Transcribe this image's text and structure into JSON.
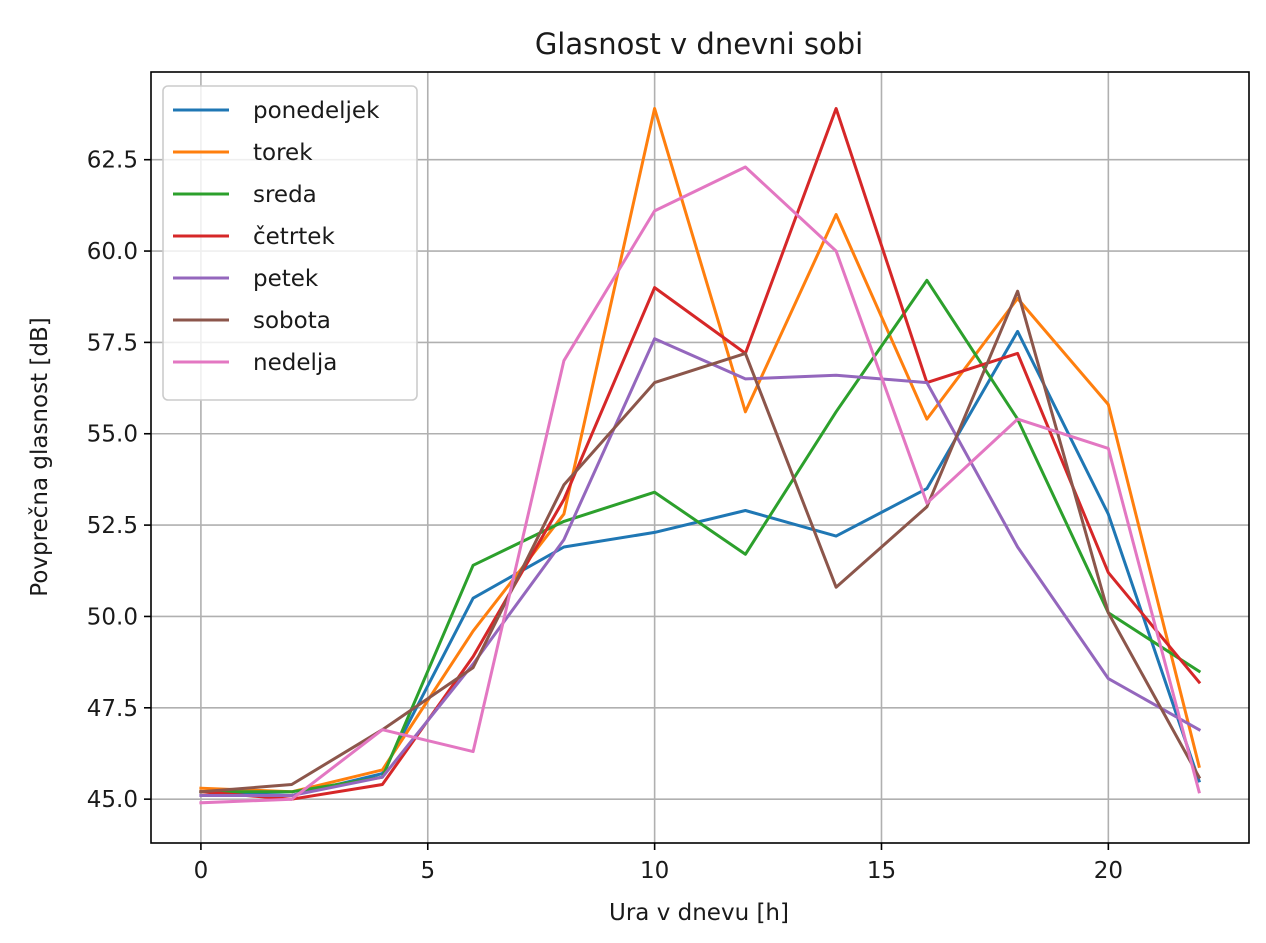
{
  "chart_data": {
    "type": "line",
    "title": "Glasnost v dnevni sobi",
    "xlabel": "Ura v dnevu [h]",
    "ylabel": "Povprečna glasnost [dB]",
    "xlim": [
      -1.1,
      23.1
    ],
    "ylim": [
      43.8,
      64.9
    ],
    "xticks": [
      0,
      5,
      10,
      15,
      20
    ],
    "xtick_labels": [
      "0",
      "5",
      "10",
      "15",
      "20"
    ],
    "yticks": [
      45.0,
      47.5,
      50.0,
      52.5,
      55.0,
      57.5,
      60.0,
      62.5
    ],
    "ytick_labels": [
      "45.0",
      "47.5",
      "50.0",
      "52.5",
      "55.0",
      "57.5",
      "60.0",
      "62.5"
    ],
    "grid": true,
    "legend_position": "top-left",
    "x": [
      0,
      2,
      4,
      6,
      8,
      10,
      12,
      14,
      16,
      18,
      20,
      22
    ],
    "series": [
      {
        "name": "ponedeljek",
        "color": "#1f77b4",
        "values": [
          45.2,
          45.1,
          45.7,
          50.5,
          51.9,
          52.3,
          52.9,
          52.2,
          53.5,
          57.8,
          52.8,
          45.5
        ]
      },
      {
        "name": "torek",
        "color": "#ff7f0e",
        "values": [
          45.3,
          45.2,
          45.8,
          49.6,
          52.8,
          63.9,
          55.6,
          61.0,
          55.4,
          58.7,
          55.8,
          45.9
        ]
      },
      {
        "name": "sreda",
        "color": "#2ca02c",
        "values": [
          45.2,
          45.2,
          45.6,
          51.4,
          52.6,
          53.4,
          51.7,
          55.6,
          59.2,
          55.4,
          50.1,
          48.5
        ]
      },
      {
        "name": "četrtek",
        "color": "#d62728",
        "values": [
          45.2,
          45.0,
          45.4,
          48.9,
          53.2,
          59.0,
          57.2,
          63.9,
          56.4,
          57.2,
          51.2,
          48.2
        ]
      },
      {
        "name": "petek",
        "color": "#9467bd",
        "values": [
          45.1,
          45.1,
          45.6,
          48.7,
          52.1,
          57.6,
          56.5,
          56.6,
          56.4,
          51.9,
          48.3,
          46.9
        ]
      },
      {
        "name": "sobota",
        "color": "#8c564b",
        "values": [
          45.2,
          45.4,
          46.9,
          48.6,
          53.6,
          56.4,
          57.2,
          50.8,
          53.0,
          58.9,
          50.1,
          45.6
        ]
      },
      {
        "name": "nedelja",
        "color": "#e377c2",
        "values": [
          44.9,
          45.0,
          46.9,
          46.3,
          57.0,
          61.1,
          62.3,
          60.0,
          53.1,
          55.4,
          54.6,
          45.2
        ]
      }
    ]
  }
}
